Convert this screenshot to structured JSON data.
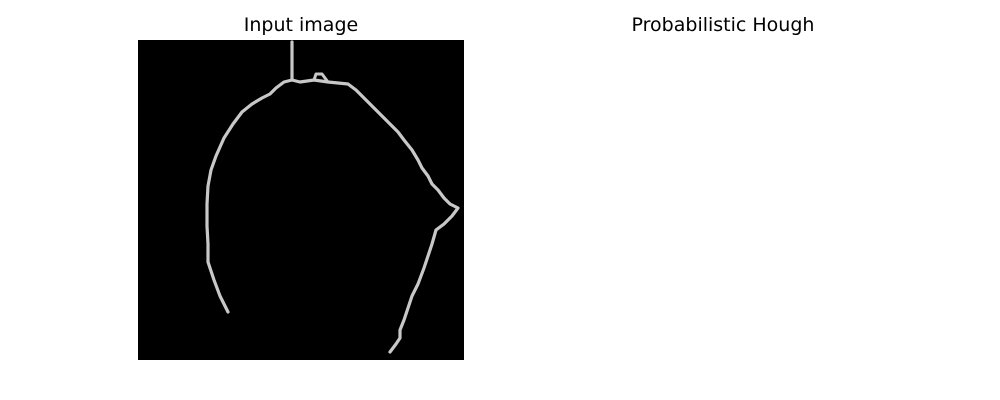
{
  "panels": {
    "left": {
      "title": "Input image"
    },
    "right": {
      "title": "Probabilistic Hough"
    }
  }
}
